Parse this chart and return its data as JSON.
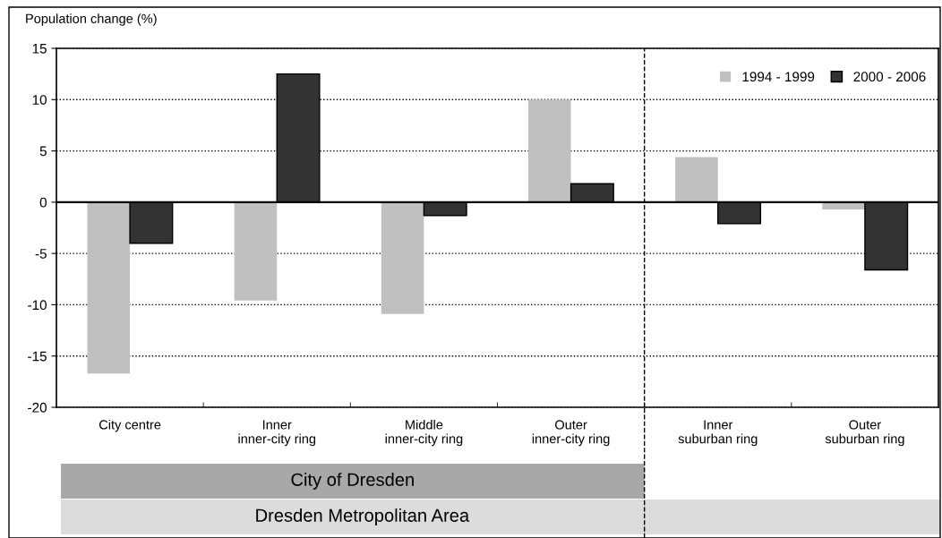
{
  "chart_data": {
    "type": "bar",
    "ylabel": "Population change (%)",
    "categories": [
      "City centre",
      "Inner\ninner-city ring",
      "Middle\ninner-city ring",
      "Outer\ninner-city ring",
      "Inner\nsuburban ring",
      "Outer\nsuburban ring"
    ],
    "series": [
      {
        "name": "1994 - 1999",
        "color": "#c0c0c0",
        "values": [
          -16.7,
          -9.6,
          -10.9,
          10.0,
          4.4,
          -0.7
        ]
      },
      {
        "name": "2000 - 2006",
        "color": "#333333",
        "values": [
          -4.0,
          12.5,
          -1.3,
          1.8,
          -2.1,
          -6.6
        ]
      }
    ],
    "ylim": [
      -20,
      15
    ],
    "yticks": [
      -20,
      -15,
      -10,
      -5,
      0,
      5,
      10,
      15
    ],
    "grid": "y",
    "legend": "top right",
    "annotations": [
      "City of Dresden",
      "Dresden Metropolitan Area"
    ]
  }
}
